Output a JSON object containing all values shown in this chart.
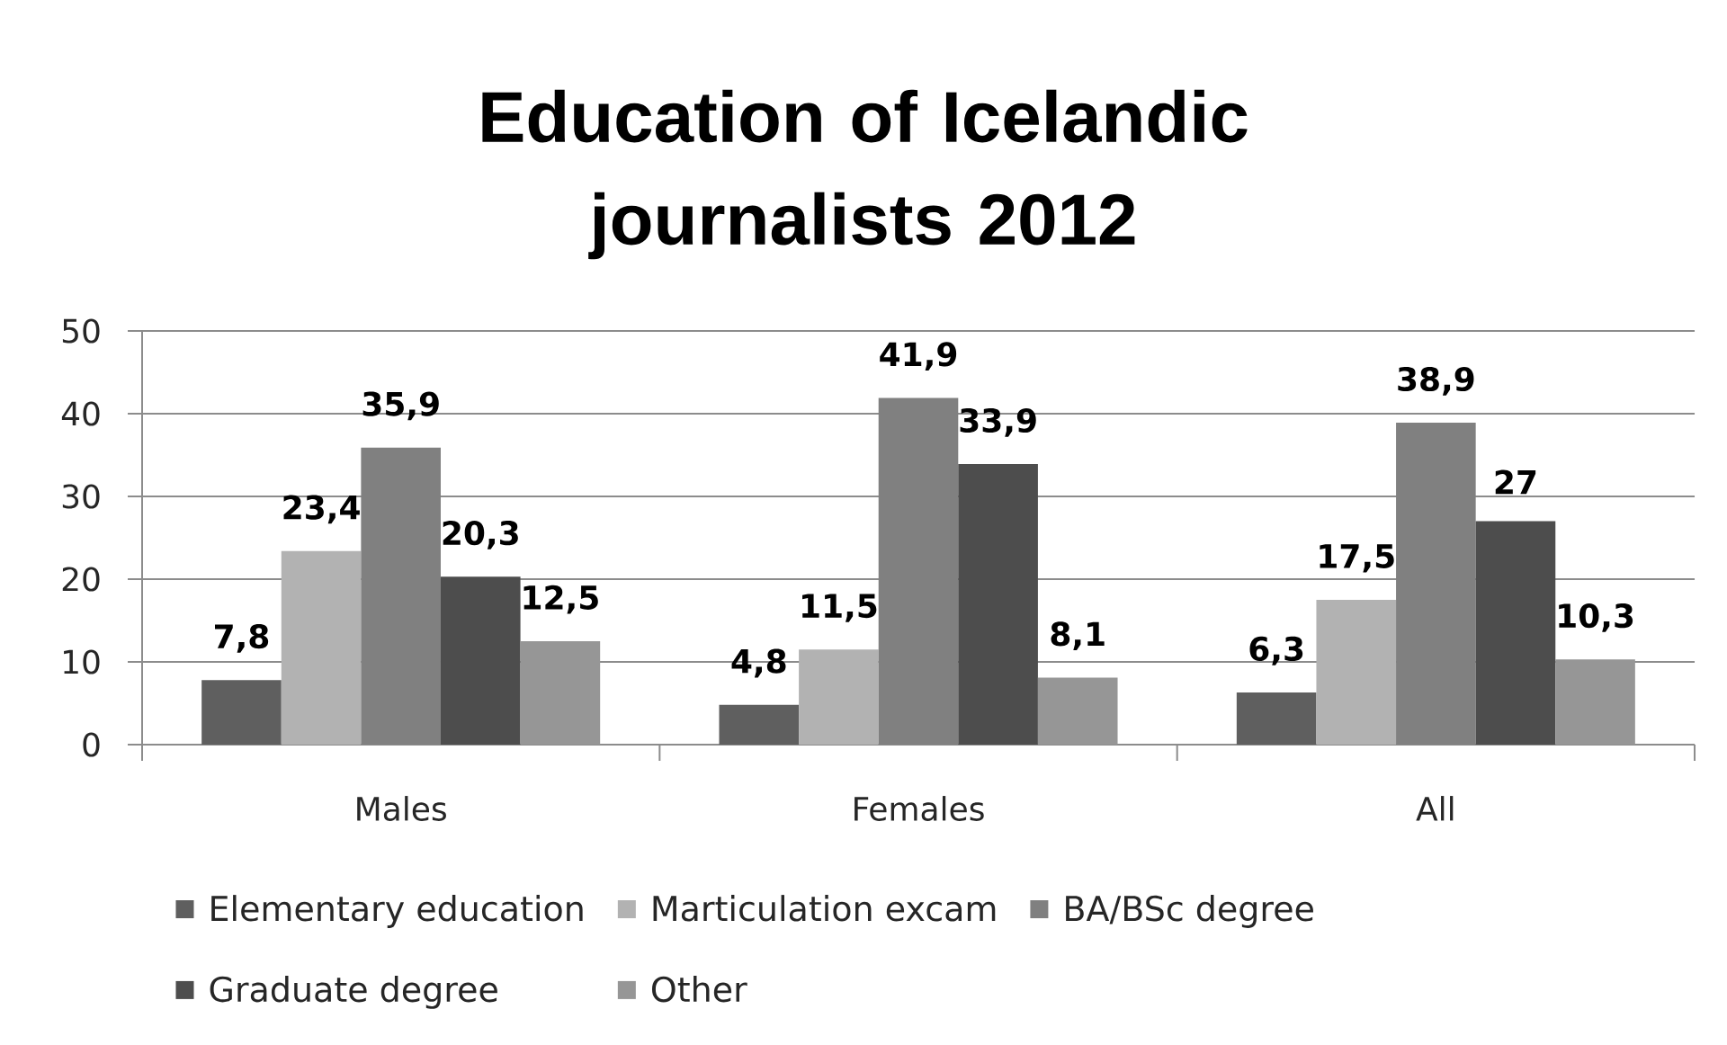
{
  "chart_data": {
    "type": "bar",
    "title": "Education of Icelandic journalists 2012",
    "categories": [
      "Males",
      "Females",
      "All"
    ],
    "series": [
      {
        "name": "Elementary education",
        "color": "#5f5f5f",
        "values": [
          7.8,
          4.8,
          6.3
        ],
        "value_labels": [
          "7,8",
          "4,8",
          "6,3"
        ]
      },
      {
        "name": "Marticulation excam",
        "color": "#b2b2b2",
        "values": [
          23.4,
          11.5,
          17.5
        ],
        "value_labels": [
          "23,4",
          "11,5",
          "17,5"
        ]
      },
      {
        "name": "BA/BSc degree",
        "color": "#808080",
        "values": [
          35.9,
          41.9,
          38.9
        ],
        "value_labels": [
          "35,9",
          "41,9",
          "38,9"
        ]
      },
      {
        "name": "Graduate degree",
        "color": "#4d4d4d",
        "values": [
          20.3,
          33.9,
          27
        ],
        "value_labels": [
          "20,3",
          "33,9",
          "27"
        ]
      },
      {
        "name": "Other",
        "color": "#969696",
        "values": [
          12.5,
          8.1,
          10.3
        ],
        "value_labels": [
          "12,5",
          "8,1",
          "10,3"
        ]
      }
    ],
    "ylim": [
      0,
      50
    ],
    "yticks": [
      0,
      10,
      20,
      30,
      40,
      50
    ],
    "grid": "y",
    "legend": "bottom"
  }
}
